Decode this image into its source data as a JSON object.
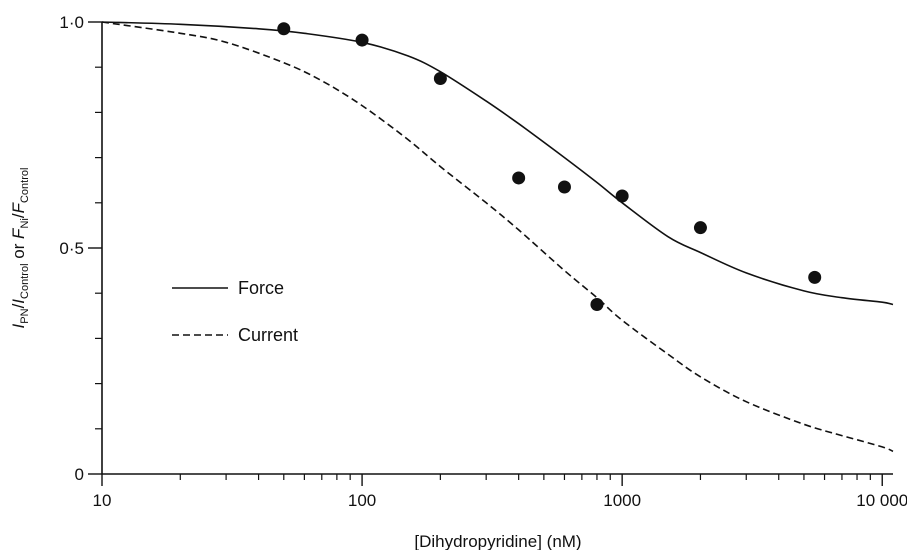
{
  "chart_data": {
    "type": "line",
    "xlabel": "[Dihydropyridine] (nM)",
    "ylabel": {
      "part1_main": "I",
      "part1_sub": "PN",
      "sep1": "/",
      "part2_main": "I",
      "part2_sub": "Control",
      "connector": " or ",
      "part3_main": "F",
      "part3_sub": "Ni",
      "sep2": "/",
      "part4_main": "F",
      "part4_sub": "Control"
    },
    "x_scale": "log",
    "xlim": [
      10,
      11000
    ],
    "ylim": [
      0,
      1.0
    ],
    "x_ticks": [
      {
        "value": 10,
        "label": "10"
      },
      {
        "value": 100,
        "label": "100"
      },
      {
        "value": 1000,
        "label": "1000"
      },
      {
        "value": 10000,
        "label": "10 000"
      }
    ],
    "y_ticks": [
      {
        "value": 0,
        "label": "0"
      },
      {
        "value": 0.5,
        "label": "0·5"
      },
      {
        "value": 1.0,
        "label": "1·0"
      }
    ],
    "y_minor_ticks": [
      0.1,
      0.2,
      0.3,
      0.4,
      0.6,
      0.7,
      0.8,
      0.9
    ],
    "grid": false,
    "legend_position": "middle-left",
    "series": [
      {
        "name": "Force",
        "style": "solid",
        "x": [
          10,
          20,
          40,
          60,
          100,
          150,
          200,
          300,
          400,
          600,
          800,
          1000,
          1500,
          2000,
          3000,
          5000,
          7000,
          10000,
          11000
        ],
        "y": [
          1.0,
          0.995,
          0.985,
          0.975,
          0.955,
          0.925,
          0.89,
          0.825,
          0.775,
          0.7,
          0.645,
          0.6,
          0.525,
          0.49,
          0.445,
          0.405,
          0.39,
          0.38,
          0.375
        ]
      },
      {
        "name": "Current",
        "style": "dashed",
        "x": [
          10,
          20,
          30,
          50,
          70,
          100,
          150,
          200,
          300,
          400,
          600,
          800,
          1000,
          1500,
          2000,
          3000,
          5000,
          7000,
          10000,
          11000
        ],
        "y": [
          1.0,
          0.975,
          0.955,
          0.91,
          0.87,
          0.815,
          0.74,
          0.68,
          0.6,
          0.54,
          0.45,
          0.39,
          0.34,
          0.265,
          0.215,
          0.16,
          0.11,
          0.085,
          0.06,
          0.05
        ]
      }
    ],
    "points": {
      "x": [
        50,
        100,
        200,
        400,
        600,
        800,
        1000,
        2000,
        5500
      ],
      "y": [
        0.985,
        0.96,
        0.875,
        0.655,
        0.635,
        0.375,
        0.615,
        0.545,
        0.435
      ]
    }
  }
}
